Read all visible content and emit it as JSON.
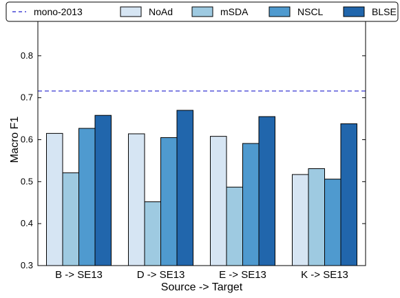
{
  "chart_data": {
    "type": "bar",
    "title": "",
    "xlabel": "Source -> Target",
    "ylabel": "Macro F1",
    "categories": [
      "B -> SE13",
      "D -> SE13",
      "E -> SE13",
      "K -> SE13"
    ],
    "series": [
      {
        "name": "NoAd",
        "color": "#d6e5f3",
        "values": [
          0.615,
          0.614,
          0.608,
          0.517
        ]
      },
      {
        "name": "mSDA",
        "color": "#9ecae1",
        "values": [
          0.521,
          0.452,
          0.487,
          0.531
        ]
      },
      {
        "name": "NSCL",
        "color": "#4f9acf",
        "values": [
          0.627,
          0.605,
          0.591,
          0.506
        ]
      },
      {
        "name": "BLSE",
        "color": "#2166ac",
        "values": [
          0.658,
          0.67,
          0.655,
          0.638
        ]
      }
    ],
    "reference_lines": [
      {
        "name": "mono-2013",
        "value": 0.716,
        "color": "#1f1fcc",
        "style": "dashed"
      }
    ],
    "ylim": [
      0.3,
      0.9
    ],
    "yticks": [
      "0.3",
      "0.4",
      "0.5",
      "0.6",
      "0.7",
      "0.8"
    ],
    "grid": false,
    "legend_position": "top"
  }
}
